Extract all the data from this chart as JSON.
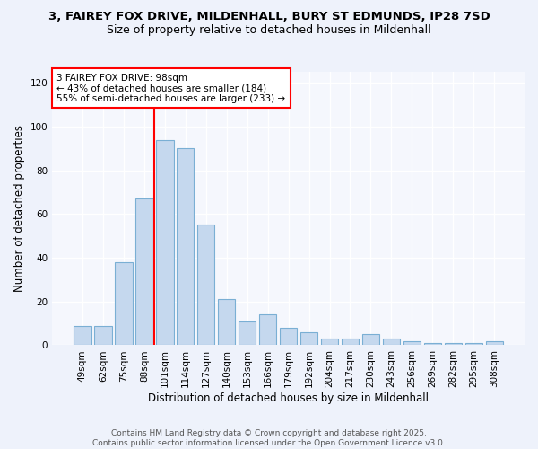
{
  "title_line1": "3, FAIREY FOX DRIVE, MILDENHALL, BURY ST EDMUNDS, IP28 7SD",
  "title_line2": "Size of property relative to detached houses in Mildenhall",
  "xlabel": "Distribution of detached houses by size in Mildenhall",
  "ylabel": "Number of detached properties",
  "categories": [
    "49sqm",
    "62sqm",
    "75sqm",
    "88sqm",
    "101sqm",
    "114sqm",
    "127sqm",
    "140sqm",
    "153sqm",
    "166sqm",
    "179sqm",
    "192sqm",
    "204sqm",
    "217sqm",
    "230sqm",
    "243sqm",
    "256sqm",
    "269sqm",
    "282sqm",
    "295sqm",
    "308sqm"
  ],
  "values": [
    9,
    9,
    38,
    67,
    94,
    90,
    55,
    21,
    11,
    14,
    8,
    6,
    3,
    3,
    5,
    3,
    2,
    1,
    1,
    1,
    2
  ],
  "bar_color": "#c5d8ee",
  "bar_edge_color": "#7aafd4",
  "ylim": [
    0,
    125
  ],
  "yticks": [
    0,
    20,
    40,
    60,
    80,
    100,
    120
  ],
  "red_line_index": 4,
  "annotation_title": "3 FAIREY FOX DRIVE: 98sqm",
  "annotation_line2": "← 43% of detached houses are smaller (184)",
  "annotation_line3": "55% of semi-detached houses are larger (233) →",
  "footer_line1": "Contains HM Land Registry data © Crown copyright and database right 2025.",
  "footer_line2": "Contains public sector information licensed under the Open Government Licence v3.0.",
  "bg_color": "#eef2fb",
  "plot_bg_color": "#f5f7fd",
  "grid_color": "#ffffff",
  "title_fontsize": 9.5,
  "subtitle_fontsize": 9,
  "axis_label_fontsize": 8.5,
  "tick_fontsize": 7.5,
  "annotation_fontsize": 7.5,
  "footer_fontsize": 6.5
}
